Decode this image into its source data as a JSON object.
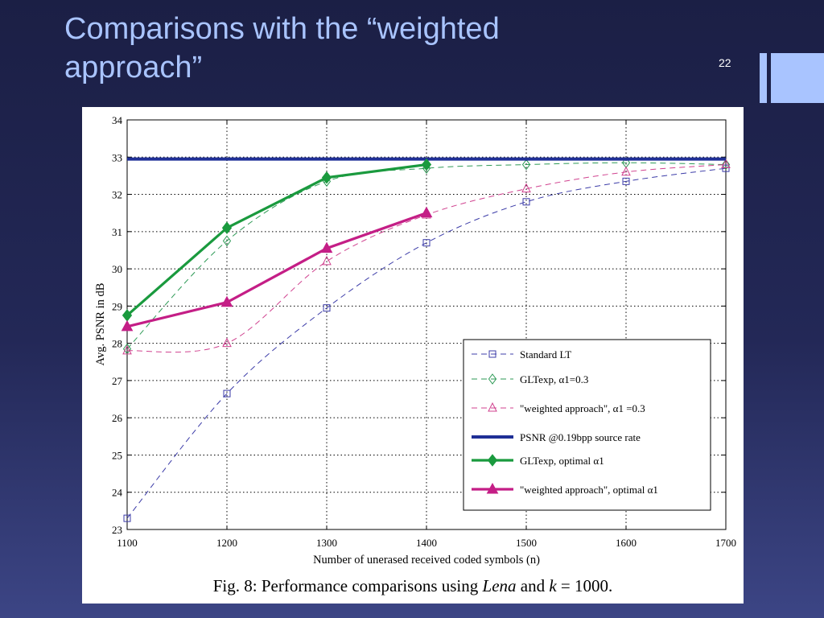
{
  "slide": {
    "title_line1": "Comparisons with the “weighted",
    "title_line2": "approach”",
    "page_number": "22",
    "accent_color": "#a9c4ff"
  },
  "figure": {
    "caption_prefix": "Fig. 8: Performance comparisons using ",
    "caption_italic": "Lena",
    "caption_mid": " and ",
    "caption_k": "k",
    "caption_suffix": " = 1000."
  },
  "chart_data": {
    "type": "line",
    "xlabel": "Number of unerased received coded symbols (n)",
    "ylabel": "Avg. PSNR in dB",
    "xlim": [
      1100,
      1700
    ],
    "ylim": [
      23,
      34
    ],
    "xticks": [
      1100,
      1200,
      1300,
      1400,
      1500,
      1600,
      1700
    ],
    "yticks": [
      23,
      24,
      25,
      26,
      27,
      28,
      29,
      30,
      31,
      32,
      33,
      34
    ],
    "grid": true,
    "legend_position": "lower-right",
    "series": [
      {
        "name": "Standard LT",
        "color": "#3c3ca8",
        "dash": true,
        "marker": "square",
        "x": [
          1100,
          1200,
          1300,
          1400,
          1500,
          1600,
          1700
        ],
        "y": [
          23.3,
          26.65,
          28.95,
          30.7,
          31.8,
          32.35,
          32.7
        ]
      },
      {
        "name": "GLTexp, α1=0.3",
        "color": "#2e9a56",
        "dash": true,
        "marker": "diamond",
        "x": [
          1100,
          1200,
          1300,
          1400,
          1500,
          1600,
          1700
        ],
        "y": [
          27.85,
          30.75,
          32.35,
          32.7,
          32.8,
          32.85,
          32.8
        ]
      },
      {
        "name": "\"weighted approach\", α1 =0.3",
        "color": "#d0428f",
        "dash": true,
        "marker": "triangle",
        "x": [
          1100,
          1200,
          1300,
          1400,
          1500,
          1600,
          1700
        ],
        "y": [
          27.8,
          28.0,
          30.2,
          31.45,
          32.15,
          32.6,
          32.8
        ]
      },
      {
        "name": "PSNR @0.19bpp source rate",
        "color": "#1f2f96",
        "dash": false,
        "marker": "none",
        "x": [
          1100,
          1700
        ],
        "y": [
          32.95,
          32.95
        ]
      },
      {
        "name": "GLTexp, optimal α1",
        "color": "#1a9a3e",
        "dash": false,
        "marker": "diamond-filled",
        "x": [
          1100,
          1200,
          1300,
          1400
        ],
        "y": [
          28.75,
          31.1,
          32.45,
          32.8
        ]
      },
      {
        "name": "\"weighted approach\", optimal α1",
        "color": "#c41e86",
        "dash": false,
        "marker": "triangle-filled",
        "x": [
          1100,
          1200,
          1300,
          1400
        ],
        "y": [
          28.45,
          29.1,
          30.55,
          31.5
        ]
      }
    ]
  }
}
